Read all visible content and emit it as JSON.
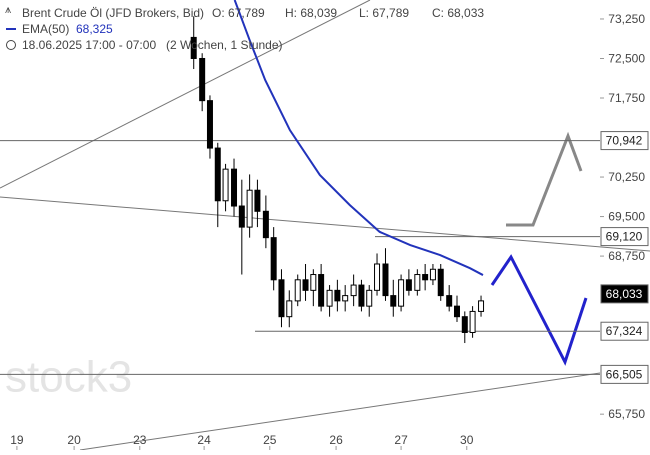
{
  "chart_data": {
    "type": "candlestick",
    "title": "Brent Crude Öl (JFD Brokers, Bid)",
    "ohlc_readout": [
      "O: 67,789",
      "H: 68,039",
      "L: 67,789",
      "C: 68,033"
    ],
    "period": "18.06.2025 17:00 - 07:00",
    "range": "(2 Wochen, 1 Stunde)",
    "watermark": "stock3",
    "color": "#000000",
    "x": [
      2.72,
      2.85,
      2.97,
      3.09,
      3.21,
      3.34,
      3.46,
      3.58,
      3.7,
      3.83,
      3.95,
      4.07,
      4.19,
      4.32,
      4.44,
      4.56,
      4.68,
      4.81,
      4.93,
      5.05,
      5.18,
      5.3,
      5.42,
      5.54,
      5.67,
      5.79,
      5.91,
      6.03,
      6.16,
      6.28,
      6.4,
      6.52,
      6.65,
      6.77,
      6.89,
      7.01,
      7.14
    ],
    "open": [
      72.9,
      72.5,
      71.7,
      70.8,
      69.8,
      70.4,
      69.7,
      69.3,
      70.0,
      69.6,
      69.1,
      68.3,
      67.6,
      67.9,
      68.3,
      68.1,
      68.4,
      67.8,
      68.1,
      67.9,
      68.0,
      68.2,
      67.8,
      68.1,
      68.6,
      68.0,
      67.8,
      68.3,
      68.1,
      68.4,
      68.3,
      68.5,
      68.0,
      67.8,
      67.6,
      67.3,
      67.7
    ],
    "high": [
      73.3,
      72.6,
      71.8,
      70.9,
      70.5,
      70.6,
      70.2,
      70.3,
      70.2,
      69.9,
      69.3,
      68.5,
      68.1,
      68.4,
      68.6,
      68.5,
      68.6,
      68.2,
      68.3,
      68.2,
      68.4,
      68.3,
      68.2,
      68.8,
      68.9,
      68.3,
      68.4,
      68.5,
      68.5,
      68.6,
      68.6,
      68.6,
      68.2,
      68.0,
      67.7,
      67.8,
      68.0
    ],
    "low": [
      72.3,
      71.5,
      70.6,
      69.3,
      69.6,
      69.5,
      68.4,
      69.1,
      69.3,
      68.9,
      68.1,
      67.4,
      67.4,
      67.8,
      67.9,
      67.8,
      67.7,
      67.6,
      67.7,
      67.7,
      67.8,
      67.7,
      67.6,
      68.0,
      67.9,
      67.6,
      67.7,
      68.0,
      68.0,
      68.1,
      68.2,
      67.9,
      67.7,
      67.5,
      67.1,
      67.2,
      67.6
    ],
    "close": [
      72.5,
      71.7,
      70.8,
      69.8,
      70.4,
      69.7,
      69.3,
      70.0,
      69.6,
      69.1,
      68.3,
      67.6,
      67.9,
      68.3,
      68.1,
      68.4,
      67.8,
      68.1,
      67.9,
      68.0,
      68.2,
      67.8,
      68.1,
      68.6,
      68.0,
      67.8,
      68.3,
      68.1,
      68.4,
      68.3,
      68.5,
      68.0,
      67.8,
      67.6,
      67.3,
      67.7,
      67.9
    ],
    "ema": {
      "name": "EMA(50)",
      "value_label": "68,325",
      "color": "#2233bb",
      "x": [
        3.35,
        3.58,
        3.82,
        4.2,
        4.66,
        5.12,
        5.58,
        6.05,
        6.51,
        6.97,
        7.17
      ],
      "values": [
        73.61,
        72.85,
        72.09,
        71.14,
        70.29,
        69.72,
        69.21,
        68.96,
        68.77,
        68.52,
        68.39
      ]
    },
    "price_lines": [
      {
        "value": 70.942,
        "label": "70,942"
      },
      {
        "value": 69.12,
        "label": "69,120"
      },
      {
        "value": 68.033,
        "label": "68,033"
      },
      {
        "value": 67.324,
        "label": "67,324"
      },
      {
        "value": 66.505,
        "label": "66,505"
      }
    ],
    "xlim": [
      -0.26,
      8.97
    ],
    "xticks": [
      {
        "value": 0,
        "label": "19"
      },
      {
        "value": 0.88,
        "label": "20"
      },
      {
        "value": 1.89,
        "label": "23"
      },
      {
        "value": 2.88,
        "label": "24"
      },
      {
        "value": 3.89,
        "label": "25"
      },
      {
        "value": 4.91,
        "label": "26"
      },
      {
        "value": 5.91,
        "label": "27"
      },
      {
        "value": 6.92,
        "label": "30"
      }
    ],
    "ylim": [
      65.07,
      73.61
    ],
    "yticks": [
      {
        "value": 65.75,
        "label": "65,750"
      },
      {
        "value": 68.75,
        "label": "68,750"
      },
      {
        "value": 69.5,
        "label": "69,500"
      },
      {
        "value": 70.25,
        "label": "70,250"
      },
      {
        "value": 71.75,
        "label": "71,750"
      },
      {
        "value": 72.5,
        "label": "72,500"
      },
      {
        "value": 73.25,
        "label": "73,250"
      }
    ]
  }
}
